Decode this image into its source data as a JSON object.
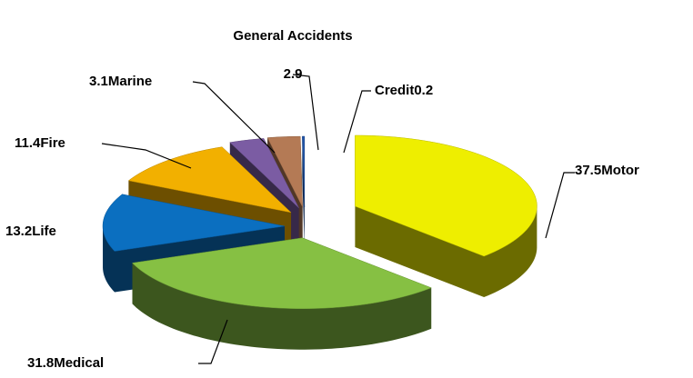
{
  "chart_data": {
    "type": "pie3d",
    "categories": [
      "Motor",
      "Medical",
      "Life",
      "Fire",
      "Marine",
      "General Accidents",
      "Credit"
    ],
    "values": [
      37.5,
      31.8,
      13.2,
      11.4,
      3.1,
      2.9,
      0.2
    ],
    "colors": [
      "#eeee00",
      "#86c043",
      "#0b6fc0",
      "#f2b000",
      "#7b5ca3",
      "#b47a55",
      "#2155a8"
    ]
  }
}
